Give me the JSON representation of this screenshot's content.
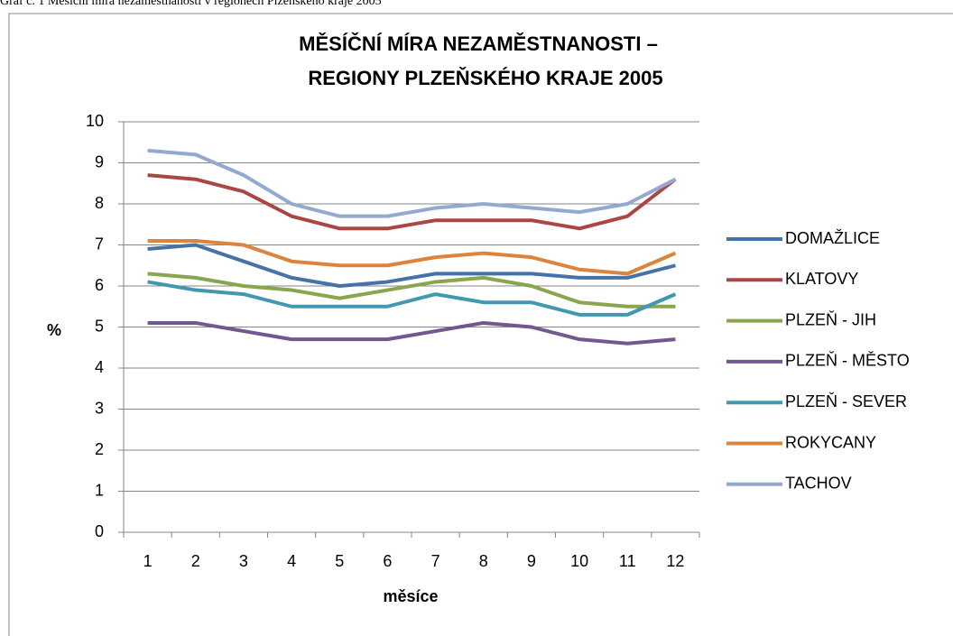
{
  "caption": "Graf č. 1 Měsíční míra nezaměstnanosti v regionech Plzeňského kraje 2005",
  "chart_data": {
    "type": "line",
    "title": [
      "MĚSÍČNÍ MÍRA NEZAMĚSTNANOSTI –",
      "REGIONY PLZEŇSKÉHO KRAJE 2005"
    ],
    "x_label": "měsíce",
    "y_label": "%",
    "categories": [
      "1",
      "2",
      "3",
      "4",
      "5",
      "6",
      "7",
      "8",
      "9",
      "10",
      "11",
      "12"
    ],
    "ylim": [
      0,
      10
    ],
    "yticks": [
      0,
      1,
      2,
      3,
      4,
      5,
      6,
      7,
      8,
      9,
      10
    ],
    "grid": true,
    "legend": "right",
    "series": [
      {
        "name": "DOMAŽLICE",
        "color": "#4572a7",
        "values": [
          6.9,
          7.0,
          6.6,
          6.2,
          6.0,
          6.1,
          6.3,
          6.3,
          6.3,
          6.2,
          6.2,
          6.5
        ]
      },
      {
        "name": "KLATOVY",
        "color": "#aa4643",
        "values": [
          8.7,
          8.6,
          8.3,
          7.7,
          7.4,
          7.4,
          7.6,
          7.6,
          7.6,
          7.4,
          7.7,
          8.6
        ]
      },
      {
        "name": "PLZEŇ - JIH",
        "color": "#89a54e",
        "values": [
          6.3,
          6.2,
          6.0,
          5.9,
          5.7,
          5.9,
          6.1,
          6.2,
          6.0,
          5.6,
          5.5,
          5.5
        ]
      },
      {
        "name": "PLZEŇ - MĚSTO",
        "color": "#71588f",
        "values": [
          5.1,
          5.1,
          4.9,
          4.7,
          4.7,
          4.7,
          4.9,
          5.1,
          5.0,
          4.7,
          4.6,
          4.7
        ]
      },
      {
        "name": "PLZEŇ - SEVER",
        "color": "#4198af",
        "values": [
          6.1,
          5.9,
          5.8,
          5.5,
          5.5,
          5.5,
          5.8,
          5.6,
          5.6,
          5.3,
          5.3,
          5.8
        ]
      },
      {
        "name": "ROKYCANY",
        "color": "#db843d",
        "values": [
          7.1,
          7.1,
          7.0,
          6.6,
          6.5,
          6.5,
          6.7,
          6.8,
          6.7,
          6.4,
          6.3,
          6.8
        ]
      },
      {
        "name": "TACHOV",
        "color": "#93a9cf",
        "values": [
          9.3,
          9.2,
          8.7,
          8.0,
          7.7,
          7.7,
          7.9,
          8.0,
          7.9,
          7.8,
          8.0,
          8.6
        ]
      }
    ]
  }
}
